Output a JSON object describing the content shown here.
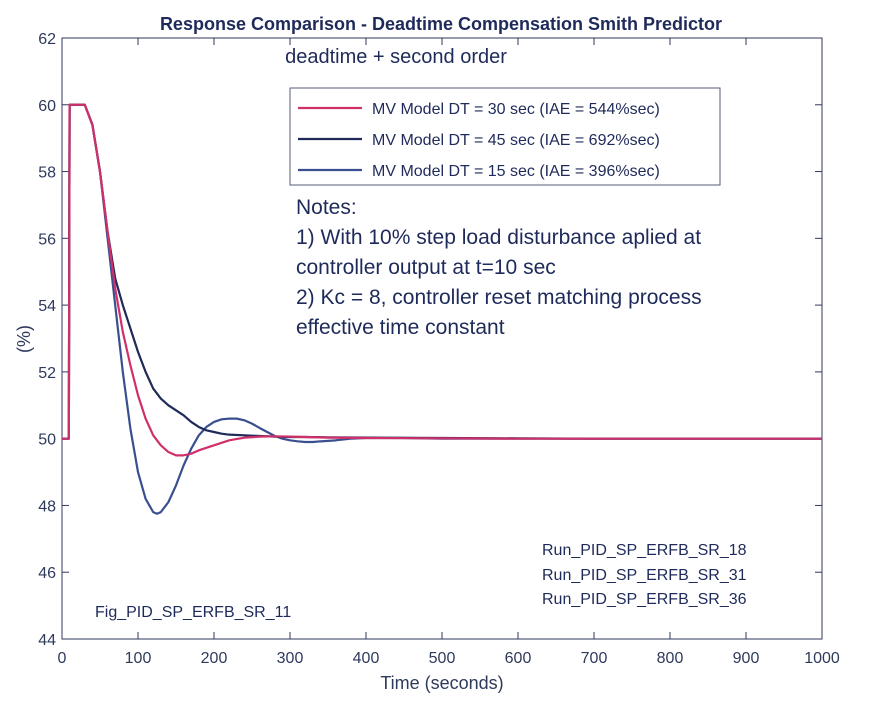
{
  "chart_data": {
    "type": "line",
    "title": "Response Comparison - Deadtime Compensation Smith Predictor",
    "subtitle": "deadtime + second order",
    "xlabel": "Time (seconds)",
    "ylabel": "(%)",
    "xlim": [
      0,
      1000
    ],
    "ylim": [
      44,
      62
    ],
    "x_ticks": [
      "0",
      "100",
      "200",
      "300",
      "400",
      "500",
      "600",
      "700",
      "800",
      "900",
      "1000"
    ],
    "y_ticks": [
      "44",
      "46",
      "48",
      "50",
      "52",
      "54",
      "56",
      "58",
      "60",
      "62"
    ],
    "grid": false,
    "legend_position": "top-right",
    "series": [
      {
        "name": "MV  Model DT = 30 sec (IAE = 544%sec)",
        "color": "#d0306a",
        "x": [
          0,
          9,
          10,
          11,
          25,
          30,
          40,
          50,
          60,
          70,
          80,
          90,
          100,
          110,
          120,
          130,
          140,
          150,
          160,
          170,
          180,
          200,
          220,
          240,
          260,
          280,
          300,
          350,
          400,
          500,
          600,
          700,
          800,
          900,
          1000
        ],
        "y": [
          50,
          50,
          60,
          60,
          60,
          60,
          59.4,
          58.0,
          56.2,
          54.5,
          53.2,
          52.2,
          51.3,
          50.6,
          50.1,
          49.8,
          49.6,
          49.5,
          49.5,
          49.55,
          49.65,
          49.8,
          49.95,
          50.03,
          50.06,
          50.07,
          50.06,
          50.03,
          50.02,
          50.01,
          50.0,
          50.0,
          50.0,
          50.0,
          50.0
        ]
      },
      {
        "name": "MV Model DT = 45 sec (IAE = 692%sec)",
        "color": "#1f2a58",
        "x": [
          0,
          9,
          10,
          11,
          25,
          30,
          40,
          50,
          60,
          70,
          80,
          90,
          100,
          110,
          120,
          130,
          140,
          150,
          160,
          170,
          180,
          190,
          200,
          210,
          220,
          240,
          260,
          280,
          300,
          320,
          350,
          400,
          500,
          600,
          700,
          800,
          900,
          1000
        ],
        "y": [
          50,
          50,
          60,
          60,
          60,
          60,
          59.4,
          58.0,
          56.2,
          54.8,
          54.0,
          53.3,
          52.6,
          52.0,
          51.5,
          51.2,
          51.0,
          50.85,
          50.7,
          50.5,
          50.35,
          50.25,
          50.2,
          50.15,
          50.12,
          50.1,
          50.08,
          50.06,
          50.05,
          50.05,
          50.04,
          50.03,
          50.02,
          50.01,
          50.0,
          50.0,
          50.0,
          50.0
        ]
      },
      {
        "name": "MV Model DT = 15 sec (IAE = 396%sec)",
        "color": "#3a4f8f",
        "x": [
          0,
          9,
          10,
          11,
          25,
          30,
          40,
          50,
          60,
          70,
          80,
          90,
          100,
          110,
          120,
          125,
          130,
          140,
          150,
          160,
          170,
          180,
          190,
          200,
          210,
          220,
          230,
          240,
          250,
          260,
          270,
          280,
          290,
          300,
          310,
          320,
          330,
          340,
          360,
          380,
          400,
          450,
          500,
          600,
          700,
          800,
          900,
          1000
        ],
        "y": [
          50,
          50,
          60,
          60,
          60,
          60,
          59.4,
          58.0,
          56.0,
          54.0,
          52.0,
          50.3,
          49.0,
          48.2,
          47.8,
          47.75,
          47.8,
          48.1,
          48.6,
          49.2,
          49.7,
          50.1,
          50.35,
          50.5,
          50.58,
          50.6,
          50.6,
          50.55,
          50.45,
          50.32,
          50.2,
          50.08,
          50.0,
          49.95,
          49.92,
          49.9,
          49.9,
          49.92,
          49.95,
          50.0,
          50.02,
          50.02,
          50.0,
          50.0,
          50.0,
          50.0,
          50.0,
          50.0
        ]
      }
    ],
    "annotations": {
      "notes": [
        "Notes:",
        "1) With 10% step load disturbance aplied at",
        "controller output at t=10 sec",
        "2) Kc = 8, controller reset matching process",
        "effective time constant"
      ],
      "runs": [
        "Run_PID_SP_ERFB_SR_18",
        "Run_PID_SP_ERFB_SR_31",
        "Run_PID_SP_ERFB_SR_36"
      ],
      "figure_id": "Fig_PID_SP_ERFB_SR_11"
    }
  }
}
